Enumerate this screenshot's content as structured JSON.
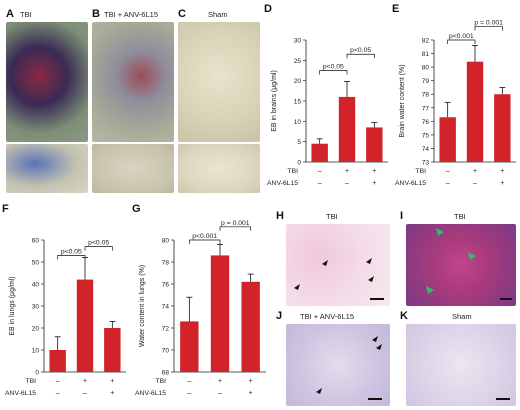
{
  "photo_panels": {
    "A": {
      "letter": "A",
      "title": "TBI"
    },
    "B": {
      "letter": "B",
      "title": "TBI + ANV-6L15"
    },
    "C": {
      "letter": "C",
      "title": "Sham"
    }
  },
  "histology_panels": {
    "H": {
      "letter": "H",
      "title": "TBI"
    },
    "I": {
      "letter": "I",
      "title": "TBI"
    },
    "J": {
      "letter": "J",
      "title": "TBI + ANV-6L15"
    },
    "K": {
      "letter": "K",
      "title": "Sham"
    }
  },
  "colors": {
    "bar": "#d2232a",
    "axis": "#222222",
    "arrow_green": "#2dbe6c"
  },
  "chart_data": [
    {
      "id": "D",
      "letter": "D",
      "type": "bar",
      "ylabel": "EB in brains (µg/ml)",
      "ylim": [
        0,
        30
      ],
      "yticks": [
        0,
        5,
        10,
        15,
        20,
        25,
        30
      ],
      "values": [
        4.5,
        16.0,
        8.5
      ],
      "errors": [
        1.2,
        3.8,
        1.2
      ],
      "row_labels": [
        "TBI",
        "ANV-6L15"
      ],
      "signs": [
        [
          "–",
          "+",
          "+"
        ],
        [
          "–",
          "–",
          "+"
        ]
      ],
      "brackets": [
        {
          "from": 0,
          "to": 1,
          "text": "p<0.05",
          "level": 22.5
        },
        {
          "from": 1,
          "to": 2,
          "text": "p<0.05",
          "level": 26.5
        }
      ]
    },
    {
      "id": "E",
      "letter": "E",
      "type": "bar",
      "ylabel": "Brain water content (%)",
      "ylim": [
        73,
        82
      ],
      "yticks": [
        73,
        74,
        75,
        76,
        77,
        78,
        79,
        80,
        81,
        82
      ],
      "values": [
        76.3,
        80.4,
        78.0
      ],
      "errors": [
        1.1,
        1.2,
        0.5
      ],
      "row_labels": [
        "TBI",
        "ANV-6L15"
      ],
      "signs": [
        [
          "–",
          "+",
          "+"
        ],
        [
          "–",
          "–",
          "+"
        ]
      ],
      "brackets": [
        {
          "from": 0,
          "to": 1,
          "text": "p<0.001",
          "level": 82.0
        },
        {
          "from": 1,
          "to": 2,
          "text": "p = 0.001",
          "level": 83.0
        }
      ]
    },
    {
      "id": "F",
      "letter": "F",
      "type": "bar",
      "ylabel": "EB in lungs (µg/ml)",
      "ylim": [
        0,
        60
      ],
      "yticks": [
        0,
        10,
        20,
        30,
        40,
        50,
        60
      ],
      "values": [
        10,
        42,
        20
      ],
      "errors": [
        6,
        10,
        3
      ],
      "row_labels": [
        "TBI",
        "ANV-6L15"
      ],
      "signs": [
        [
          "–",
          "+",
          "+"
        ],
        [
          "–",
          "–",
          "+"
        ]
      ],
      "brackets": [
        {
          "from": 0,
          "to": 1,
          "text": "p<0.05",
          "level": 53
        },
        {
          "from": 1,
          "to": 2,
          "text": "p<0.05",
          "level": 57
        }
      ]
    },
    {
      "id": "G",
      "letter": "G",
      "type": "bar",
      "ylabel": "Water content in lungs (%)",
      "ylim": [
        68,
        80
      ],
      "yticks": [
        68,
        70,
        72,
        74,
        76,
        78,
        80
      ],
      "values": [
        72.6,
        78.6,
        76.2
      ],
      "errors": [
        2.2,
        1.0,
        0.7
      ],
      "row_labels": [
        "TBI",
        "ANV-6L15"
      ],
      "signs": [
        [
          "–",
          "+",
          "+"
        ],
        [
          "–",
          "–",
          "+"
        ]
      ],
      "brackets": [
        {
          "from": 0,
          "to": 1,
          "text": "p<0.001",
          "level": 80.0
        },
        {
          "from": 1,
          "to": 2,
          "text": "p = 0.001",
          "level": 81.2
        }
      ]
    }
  ]
}
